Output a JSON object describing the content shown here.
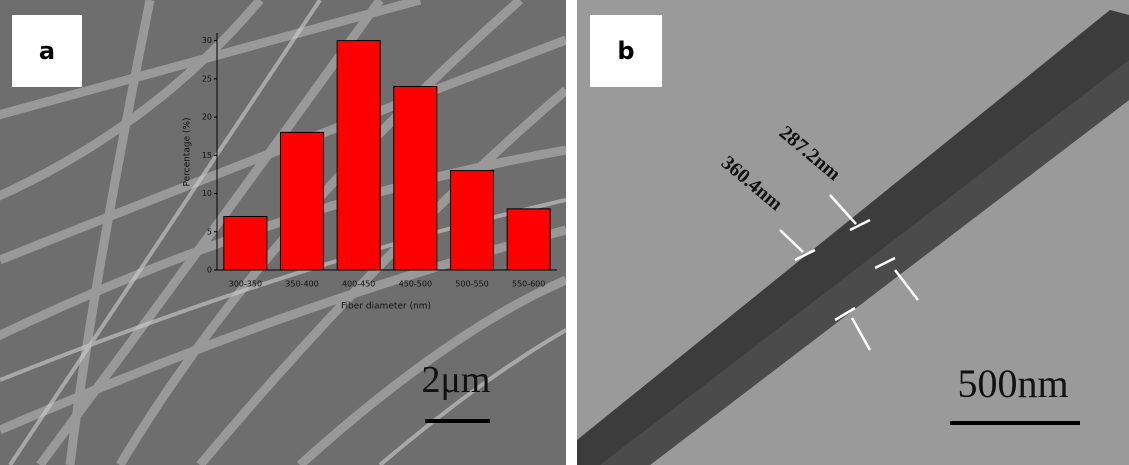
{
  "panels": [
    {
      "label": "a",
      "scale_bar": "2μm"
    },
    {
      "label": "b",
      "scale_bar": "500nm",
      "annotations": [
        "287.2nm",
        "360.4nm"
      ]
    }
  ],
  "chart_data": {
    "type": "bar",
    "categories": [
      "300-350",
      "350-400",
      "400-450",
      "450-500",
      "500-550",
      "550-600"
    ],
    "values": [
      7,
      18,
      30,
      24,
      13,
      8
    ],
    "color": "#ff0000",
    "x_label": "Fiber diameter (nm)",
    "y_label": "Percentage (%)",
    "ylim": [
      0,
      31
    ],
    "yticks": [
      0,
      5,
      10,
      15,
      20,
      25,
      30
    ],
    "grid": false
  }
}
